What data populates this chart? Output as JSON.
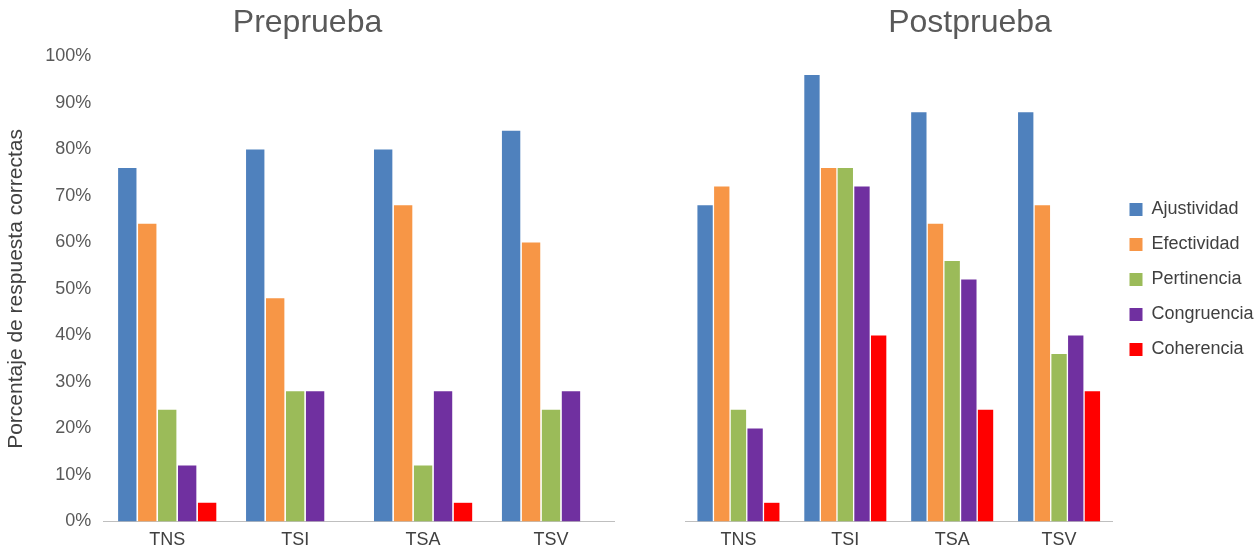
{
  "chart_data": [
    {
      "type": "bar",
      "title": "Preprueba",
      "ylabel": "Porcentaje de respuesta correctas",
      "categories": [
        "TNS",
        "TSI",
        "TSA",
        "TSV"
      ],
      "series": [
        {
          "color": "#4f81bd",
          "values": [
            76,
            80,
            80,
            84
          ]
        },
        {
          "color": "#f79646",
          "values": [
            64,
            48,
            68,
            60
          ]
        },
        {
          "color": "#9bbb59",
          "values": [
            24,
            28,
            12,
            24
          ]
        },
        {
          "color": "#7030a0",
          "values": [
            12,
            28,
            28,
            28
          ]
        },
        {
          "color": "#ff0000",
          "values": [
            4,
            0,
            4,
            0
          ]
        }
      ],
      "ylim": [
        0,
        100
      ],
      "yticks": [
        {
          "value": 0,
          "label": "0%"
        },
        {
          "value": 10,
          "label": "10%"
        },
        {
          "value": 20,
          "label": "20%"
        },
        {
          "value": 30,
          "label": "30%"
        },
        {
          "value": 40,
          "label": "40%"
        },
        {
          "value": 50,
          "label": "50%"
        },
        {
          "value": 60,
          "label": "60%"
        },
        {
          "value": 70,
          "label": "70%"
        },
        {
          "value": 80,
          "label": "80%"
        },
        {
          "value": 90,
          "label": "90%"
        },
        {
          "value": 100,
          "label": "100%"
        }
      ],
      "grid": false,
      "legend": false
    },
    {
      "type": "bar",
      "title": "Postprueba",
      "categories": [
        "TNS",
        "TSI",
        "TSA",
        "TSV"
      ],
      "series": [
        {
          "name": "Ajustividad",
          "color": "#4f81bd",
          "values": [
            68,
            96,
            88,
            88
          ]
        },
        {
          "name": "Efectividad",
          "color": "#f79646",
          "values": [
            72,
            76,
            64,
            68
          ]
        },
        {
          "name": "Pertinencia",
          "color": "#9bbb59",
          "values": [
            24,
            76,
            56,
            36
          ]
        },
        {
          "name": "Congruencia",
          "color": "#7030a0",
          "values": [
            20,
            72,
            52,
            40
          ]
        },
        {
          "name": "Coherencia",
          "color": "#ff0000",
          "values": [
            4,
            40,
            24,
            28
          ]
        }
      ],
      "ylim": [
        0,
        100
      ],
      "tick_labels": "x",
      "grid": false,
      "legend": "right"
    }
  ]
}
